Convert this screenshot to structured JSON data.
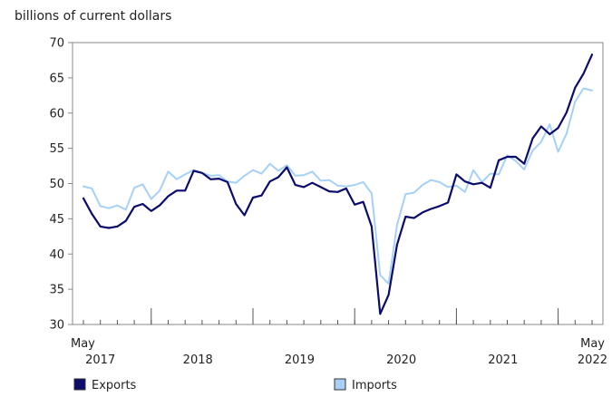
{
  "chart_data": {
    "type": "line",
    "title": "",
    "ylabel": "billions of current dollars",
    "xlabel": "",
    "ylim": [
      30,
      70
    ],
    "yticks": [
      30,
      35,
      40,
      45,
      50,
      55,
      60,
      65,
      70
    ],
    "grid": false,
    "legend_position": "bottom",
    "x_start": "May 2017",
    "x_end": "May 2022",
    "x_edge_labels": {
      "start_month": "May",
      "end_month": "May",
      "end_year": "2022"
    },
    "year_labels": [
      {
        "label": "2017",
        "month_index": 2
      },
      {
        "label": "2018",
        "month_index": 13.5
      },
      {
        "label": "2019",
        "month_index": 25.5
      },
      {
        "label": "2020",
        "month_index": 37.5
      },
      {
        "label": "2021",
        "month_index": 49.5
      }
    ],
    "series": [
      {
        "name": "Exports",
        "color": "#0b0b6e",
        "values": [
          47.9,
          45.7,
          43.9,
          43.7,
          43.9,
          44.7,
          46.7,
          47.1,
          46.1,
          46.9,
          48.2,
          49.0,
          49.0,
          51.8,
          51.5,
          50.6,
          50.7,
          50.2,
          47.1,
          45.5,
          48.0,
          48.3,
          50.3,
          50.9,
          52.3,
          49.8,
          49.5,
          50.1,
          49.5,
          48.9,
          48.8,
          49.3,
          47.0,
          47.4,
          43.9,
          31.5,
          34.2,
          41.3,
          45.3,
          45.1,
          45.9,
          46.4,
          46.8,
          47.3,
          51.3,
          50.3,
          49.9,
          50.1,
          49.4,
          53.3,
          53.8,
          53.8,
          52.8,
          56.4,
          58.1,
          57.0,
          57.9,
          60.1,
          63.6,
          65.6,
          68.3
        ]
      },
      {
        "name": "Imports",
        "color": "#a6d1f5",
        "values": [
          49.6,
          49.3,
          46.8,
          46.5,
          46.9,
          46.3,
          49.4,
          49.9,
          47.8,
          49.0,
          51.7,
          50.6,
          51.3,
          51.9,
          51.5,
          51.1,
          51.2,
          50.3,
          50.1,
          51.1,
          51.9,
          51.4,
          52.8,
          51.8,
          52.6,
          51.1,
          51.2,
          51.7,
          50.4,
          50.5,
          49.7,
          49.6,
          49.8,
          50.2,
          48.6,
          37.0,
          35.8,
          44.1,
          48.5,
          48.7,
          49.8,
          50.5,
          50.2,
          49.5,
          49.7,
          48.8,
          51.9,
          50.2,
          51.4,
          51.3,
          54.0,
          53.2,
          52.0,
          54.7,
          55.9,
          58.4,
          54.5,
          57.1,
          61.6,
          63.5,
          63.2
        ]
      }
    ]
  }
}
